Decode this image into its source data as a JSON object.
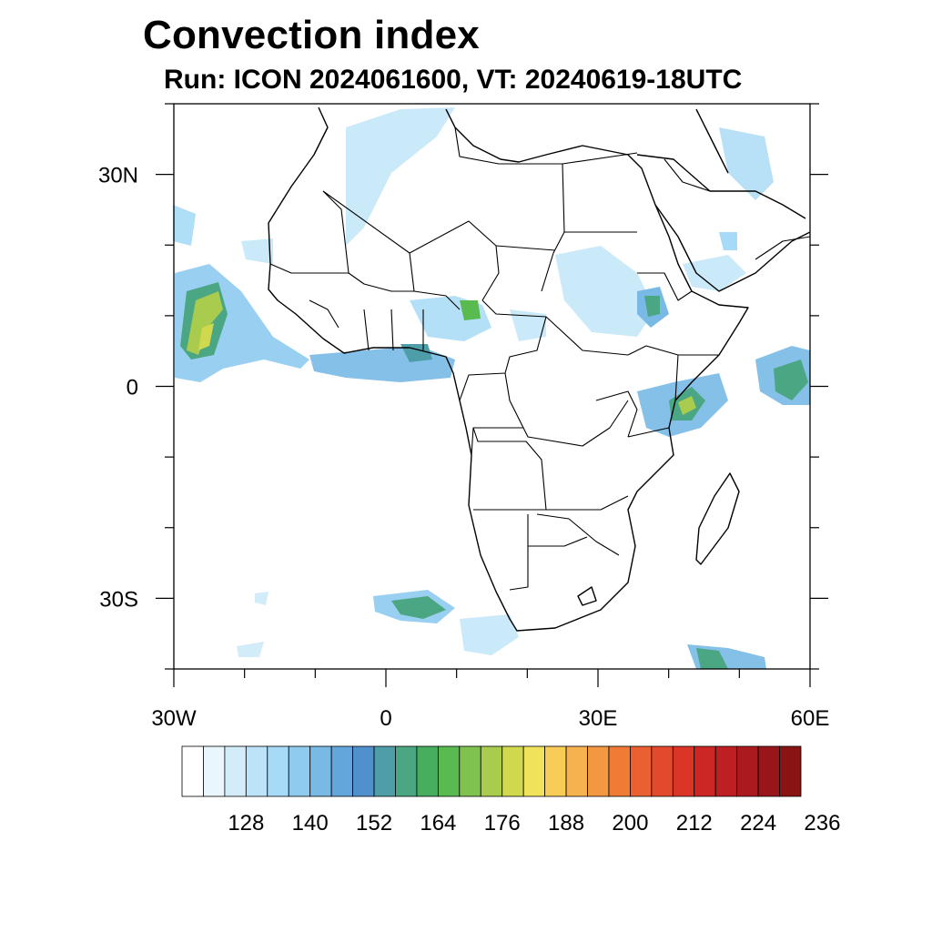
{
  "title": "Convection index",
  "subtitle": "Run: ICON 2024061600,  VT: 20240619-18UTC",
  "map": {
    "lon_range": [
      -30,
      60
    ],
    "lat_range": [
      -40,
      40
    ],
    "lon_labels": [
      {
        "text": "30W",
        "lon": -30
      },
      {
        "text": "0",
        "lon": 0
      },
      {
        "text": "30E",
        "lon": 30
      },
      {
        "text": "60E",
        "lon": 60
      }
    ],
    "lat_labels": [
      {
        "text": "30N",
        "lat": 30
      },
      {
        "text": "0",
        "lat": 0
      },
      {
        "text": "30S",
        "lat": -30
      }
    ]
  },
  "colorbar": {
    "labels": [
      "128",
      "140",
      "152",
      "164",
      "176",
      "188",
      "200",
      "212",
      "224",
      "236"
    ],
    "colors": [
      "#ffffff",
      "#eaf6fd",
      "#d3ecfa",
      "#bde3f8",
      "#a6daf6",
      "#8ecbef",
      "#78b9e6",
      "#63a6dc",
      "#5090cd",
      "#4d9ea8",
      "#4aa683",
      "#46ae5e",
      "#58ba4f",
      "#7fc24f",
      "#a9cc4e",
      "#d0d84d",
      "#f0e25a",
      "#f7cc57",
      "#f6b24f",
      "#f49742",
      "#f07b35",
      "#ea6030",
      "#e34a2c",
      "#db3528",
      "#cd2725",
      "#bd1f23",
      "#ab1a1f",
      "#981619",
      "#891414"
    ],
    "first_label_box": 3,
    "label_step_boxes": 3
  }
}
